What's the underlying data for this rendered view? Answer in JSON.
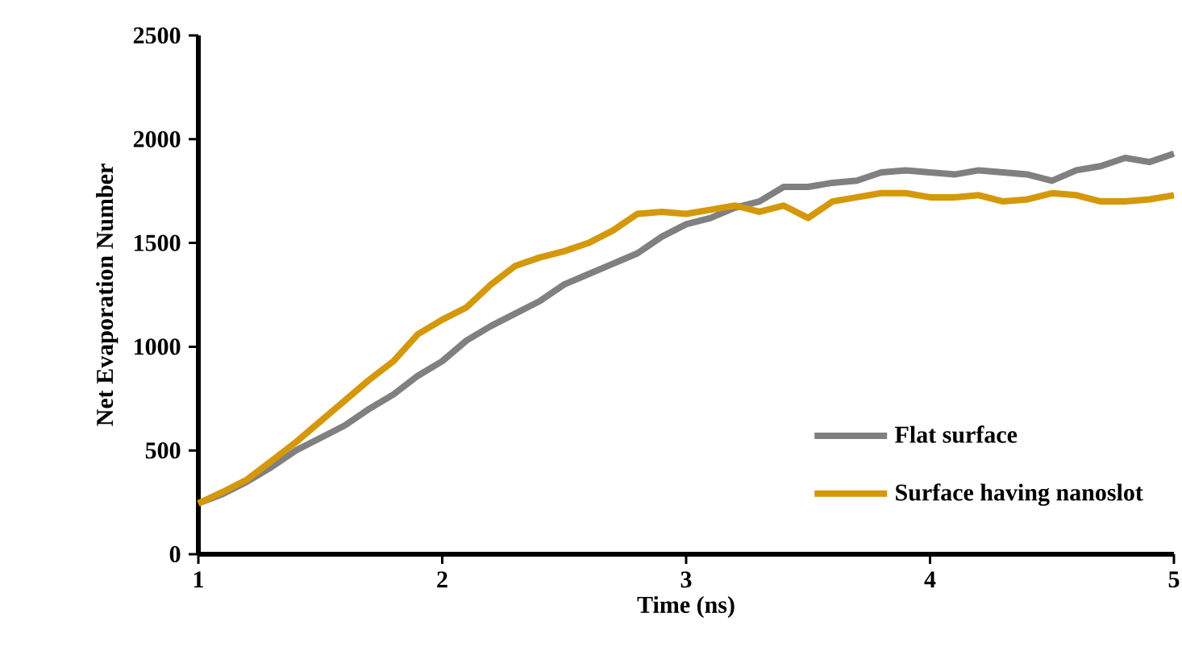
{
  "chart_data": {
    "type": "line",
    "xlabel": "Time (ns)",
    "ylabel": "Net Evaporation Number",
    "x": [
      1.0,
      1.1,
      1.2,
      1.3,
      1.4,
      1.5,
      1.6,
      1.7,
      1.8,
      1.9,
      2.0,
      2.1,
      2.2,
      2.3,
      2.4,
      2.5,
      2.6,
      2.7,
      2.8,
      2.9,
      3.0,
      3.1,
      3.2,
      3.3,
      3.4,
      3.5,
      3.6,
      3.7,
      3.8,
      3.9,
      4.0,
      4.1,
      4.2,
      4.3,
      4.4,
      4.5,
      4.6,
      4.7,
      4.8,
      4.9,
      5.0
    ],
    "series": [
      {
        "name": "Flat surface",
        "color": "#808080",
        "values": [
          245,
          290,
          350,
          420,
          500,
          560,
          620,
          700,
          770,
          860,
          930,
          1030,
          1100,
          1160,
          1220,
          1300,
          1350,
          1400,
          1450,
          1530,
          1590,
          1620,
          1670,
          1700,
          1770,
          1770,
          1790,
          1800,
          1840,
          1850,
          1840,
          1830,
          1850,
          1840,
          1830,
          1800,
          1850,
          1870,
          1910,
          1890,
          1930
        ]
      },
      {
        "name": "Surface having nanoslot",
        "color": "#d4980a",
        "values": [
          245,
          300,
          360,
          450,
          540,
          640,
          740,
          840,
          930,
          1060,
          1130,
          1190,
          1300,
          1390,
          1430,
          1460,
          1500,
          1560,
          1640,
          1650,
          1640,
          1660,
          1680,
          1650,
          1680,
          1620,
          1700,
          1720,
          1740,
          1740,
          1720,
          1720,
          1730,
          1700,
          1710,
          1740,
          1730,
          1700,
          1700,
          1710,
          1730
        ]
      }
    ],
    "xlim": [
      1,
      5
    ],
    "ylim": [
      0,
      2500
    ],
    "xticks": [
      1,
      2,
      3,
      4,
      5
    ],
    "yticks": [
      0,
      500,
      1000,
      1500,
      2000,
      2500
    ],
    "grid": false,
    "legend": "bottom right",
    "marker": "none",
    "line_style": "solid"
  }
}
